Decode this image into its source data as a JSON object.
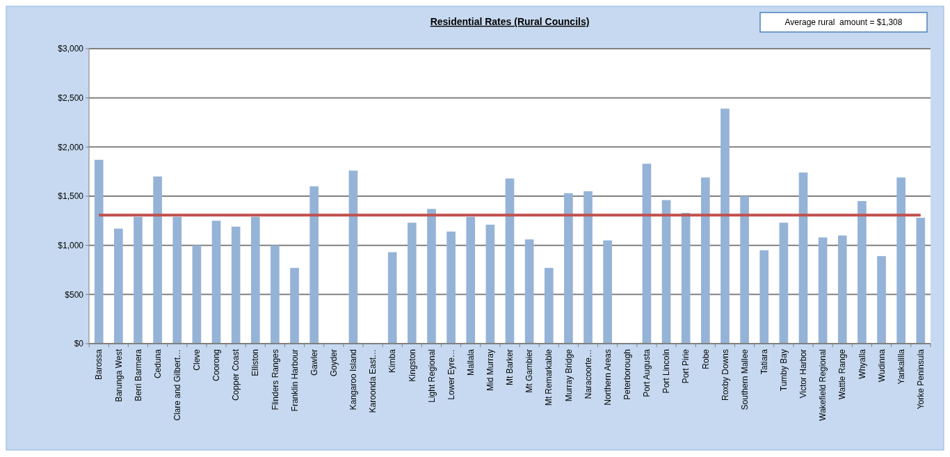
{
  "chart_data": {
    "type": "bar",
    "title": "Residential Rates (Rural Councils)",
    "categories": [
      "Barossa",
      "Barunga West",
      "Berri Barmera",
      "Ceduna",
      "Clare and Gilbert…",
      "Cleve",
      "Coorong",
      "Copper Coast",
      "Elliston",
      "Flinders Ranges",
      "Franklin Harbour",
      "Gawler",
      "Goyder",
      "Kangaroo Island",
      "Karoonda East…",
      "Kimba",
      "Kingston",
      "Light Regional",
      "Lower Eyre…",
      "Mallala",
      "Mid Murray",
      "Mt Barker",
      "Mt Gambier",
      "Mt Remarkable",
      "Murray Bridge",
      "Naracoorte…",
      "Northern Areas",
      "Peterborough",
      "Port Augusta",
      "Port Lincoln",
      "Port Pirie",
      "Robe",
      "Roxby Downs",
      "Southern Mallee",
      "Tatiara",
      "Tumby Bay",
      "Victor Harbor",
      "Wakefield Regional",
      "Wattle Range",
      "Whyalla",
      "Wudinna",
      "Yankalilla",
      "Yorke Peninsula"
    ],
    "values": [
      1870,
      1170,
      1290,
      1700,
      1290,
      1000,
      1250,
      1190,
      1290,
      1000,
      770,
      1600,
      0,
      1760,
      0,
      930,
      1230,
      1370,
      1140,
      1290,
      1210,
      1680,
      1060,
      770,
      1530,
      1550,
      1050,
      0,
      1830,
      1460,
      1330,
      1690,
      2390,
      1500,
      950,
      1230,
      1740,
      1080,
      1100,
      1450,
      890,
      1690,
      1280
    ],
    "color": "#95b3d7",
    "ylim": [
      0,
      3000
    ],
    "yticks": [
      {
        "value": 0,
        "label": "$0"
      },
      {
        "value": 500,
        "label": "$500"
      },
      {
        "value": 1000,
        "label": "$1,000"
      },
      {
        "value": 1500,
        "label": "$1,500"
      },
      {
        "value": 2000,
        "label": "$2,000"
      },
      {
        "value": 2500,
        "label": "$2,500"
      },
      {
        "value": 3000,
        "label": "$3,000"
      }
    ],
    "grid": "y",
    "annotations": [
      "Average rural  amount = $1,308"
    ],
    "ref_lines": [
      {
        "axis": "y",
        "value": 1308,
        "color": "#c0504d"
      }
    ]
  }
}
